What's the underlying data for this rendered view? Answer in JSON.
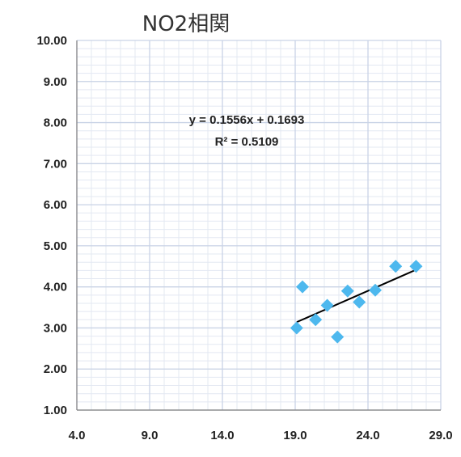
{
  "chart_data": {
    "type": "scatter",
    "title": "NO2相関",
    "xlabel": "",
    "ylabel": "",
    "xlim": [
      4.0,
      29.0
    ],
    "ylim": [
      1.0,
      10.0
    ],
    "x_ticks": [
      "4.0",
      "9.0",
      "14.0",
      "19.0",
      "24.0",
      "29.0"
    ],
    "y_ticks": [
      "1.00",
      "2.00",
      "3.00",
      "4.00",
      "5.00",
      "6.00",
      "7.00",
      "8.00",
      "9.00",
      "10.00"
    ],
    "grid": true,
    "marker": "diamond",
    "colors": {
      "points": "#4db8ee",
      "trendline": "#000000",
      "grid": "#c9d3e6",
      "grid_minor": "#e3e8f2"
    },
    "points": [
      {
        "x": 19.1,
        "y": 3.0
      },
      {
        "x": 19.5,
        "y": 4.0
      },
      {
        "x": 20.4,
        "y": 3.2
      },
      {
        "x": 21.2,
        "y": 3.55
      },
      {
        "x": 21.9,
        "y": 2.78
      },
      {
        "x": 22.6,
        "y": 3.9
      },
      {
        "x": 23.4,
        "y": 3.63
      },
      {
        "x": 24.5,
        "y": 3.92
      },
      {
        "x": 25.9,
        "y": 4.5
      },
      {
        "x": 27.3,
        "y": 4.5
      }
    ],
    "trendline": {
      "slope": 0.1556,
      "intercept": 0.1693,
      "x_range": [
        19.1,
        27.3
      ]
    },
    "annotations": {
      "equation": "y = 0.1556x + 0.1693",
      "r_squared": "R² = 0.5109"
    }
  }
}
